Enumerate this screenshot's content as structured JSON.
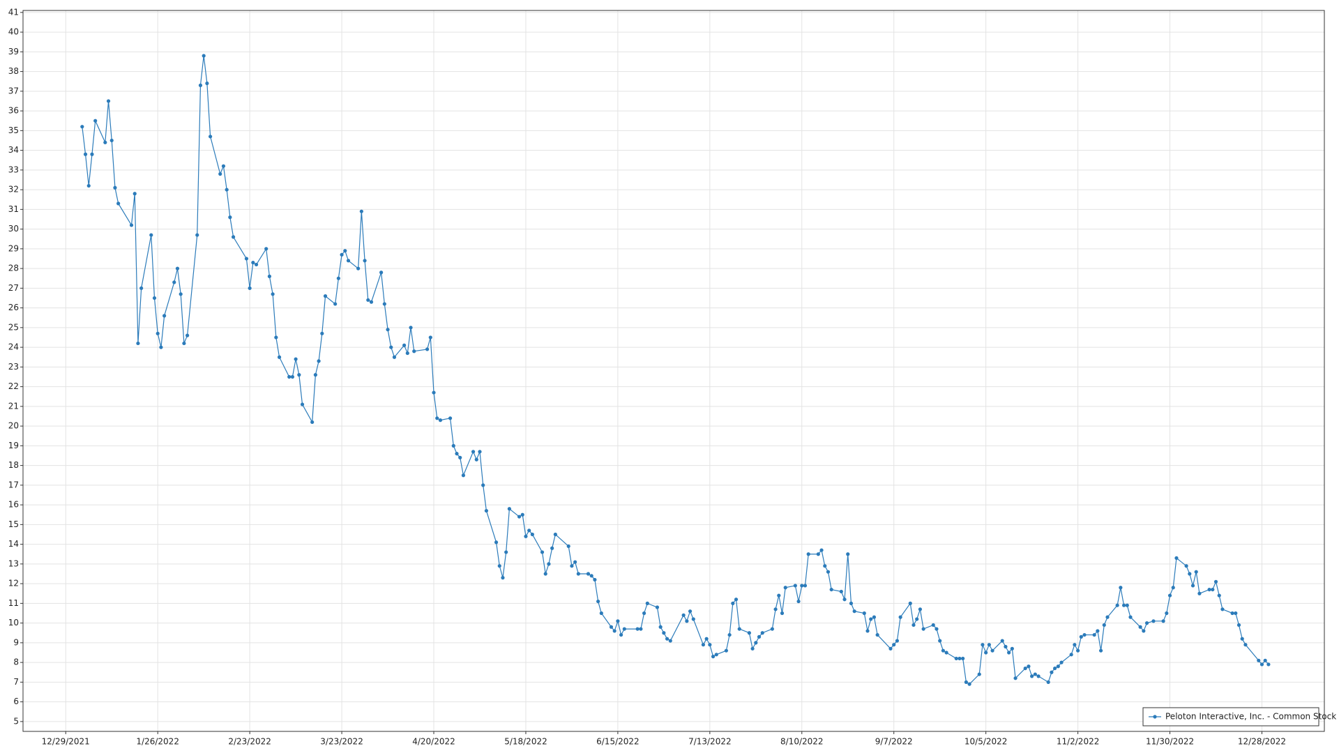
{
  "chart_data": {
    "type": "line",
    "x": [
      "1/3/2022",
      "1/4/2022",
      "1/5/2022",
      "1/6/2022",
      "1/7/2022",
      "1/10/2022",
      "1/11/2022",
      "1/12/2022",
      "1/13/2022",
      "1/14/2022",
      "1/18/2022",
      "1/19/2022",
      "1/20/2022",
      "1/21/2022",
      "1/24/2022",
      "1/25/2022",
      "1/26/2022",
      "1/27/2022",
      "1/28/2022",
      "1/31/2022",
      "2/1/2022",
      "2/2/2022",
      "2/3/2022",
      "2/4/2022",
      "2/7/2022",
      "2/8/2022",
      "2/9/2022",
      "2/10/2022",
      "2/11/2022",
      "2/14/2022",
      "2/15/2022",
      "2/16/2022",
      "2/17/2022",
      "2/18/2022",
      "2/22/2022",
      "2/23/2022",
      "2/24/2022",
      "2/25/2022",
      "2/28/2022",
      "3/1/2022",
      "3/2/2022",
      "3/3/2022",
      "3/4/2022",
      "3/7/2022",
      "3/8/2022",
      "3/9/2022",
      "3/10/2022",
      "3/11/2022",
      "3/14/2022",
      "3/15/2022",
      "3/16/2022",
      "3/17/2022",
      "3/18/2022",
      "3/21/2022",
      "3/22/2022",
      "3/23/2022",
      "3/24/2022",
      "3/25/2022",
      "3/28/2022",
      "3/29/2022",
      "3/30/2022",
      "3/31/2022",
      "4/1/2022",
      "4/4/2022",
      "4/5/2022",
      "4/6/2022",
      "4/7/2022",
      "4/8/2022",
      "4/11/2022",
      "4/12/2022",
      "4/13/2022",
      "4/14/2022",
      "4/18/2022",
      "4/19/2022",
      "4/20/2022",
      "4/21/2022",
      "4/22/2022",
      "4/25/2022",
      "4/26/2022",
      "4/27/2022",
      "4/28/2022",
      "4/29/2022",
      "5/2/2022",
      "5/3/2022",
      "5/4/2022",
      "5/5/2022",
      "5/6/2022",
      "5/9/2022",
      "5/10/2022",
      "5/11/2022",
      "5/12/2022",
      "5/13/2022",
      "5/16/2022",
      "5/17/2022",
      "5/18/2022",
      "5/19/2022",
      "5/20/2022",
      "5/23/2022",
      "5/24/2022",
      "5/25/2022",
      "5/26/2022",
      "5/27/2022",
      "5/31/2022",
      "6/1/2022",
      "6/2/2022",
      "6/3/2022",
      "6/6/2022",
      "6/7/2022",
      "6/8/2022",
      "6/9/2022",
      "6/10/2022",
      "6/13/2022",
      "6/14/2022",
      "6/15/2022",
      "6/16/2022",
      "6/17/2022",
      "6/21/2022",
      "6/22/2022",
      "6/23/2022",
      "6/24/2022",
      "6/27/2022",
      "6/28/2022",
      "6/29/2022",
      "6/30/2022",
      "7/1/2022",
      "7/5/2022",
      "7/6/2022",
      "7/7/2022",
      "7/8/2022",
      "7/11/2022",
      "7/12/2022",
      "7/13/2022",
      "7/14/2022",
      "7/15/2022",
      "7/18/2022",
      "7/19/2022",
      "7/20/2022",
      "7/21/2022",
      "7/22/2022",
      "7/25/2022",
      "7/26/2022",
      "7/27/2022",
      "7/28/2022",
      "7/29/2022",
      "8/1/2022",
      "8/2/2022",
      "8/3/2022",
      "8/4/2022",
      "8/5/2022",
      "8/8/2022",
      "8/9/2022",
      "8/10/2022",
      "8/11/2022",
      "8/12/2022",
      "8/15/2022",
      "8/16/2022",
      "8/17/2022",
      "8/18/2022",
      "8/19/2022",
      "8/22/2022",
      "8/23/2022",
      "8/24/2022",
      "8/25/2022",
      "8/26/2022",
      "8/29/2022",
      "8/30/2022",
      "8/31/2022",
      "9/1/2022",
      "9/2/2022",
      "9/6/2022",
      "9/7/2022",
      "9/8/2022",
      "9/9/2022",
      "9/12/2022",
      "9/13/2022",
      "9/14/2022",
      "9/15/2022",
      "9/16/2022",
      "9/19/2022",
      "9/20/2022",
      "9/21/2022",
      "9/22/2022",
      "9/23/2022",
      "9/26/2022",
      "9/27/2022",
      "9/28/2022",
      "9/29/2022",
      "9/30/2022",
      "10/3/2022",
      "10/4/2022",
      "10/5/2022",
      "10/6/2022",
      "10/7/2022",
      "10/10/2022",
      "10/11/2022",
      "10/12/2022",
      "10/13/2022",
      "10/14/2022",
      "10/17/2022",
      "10/18/2022",
      "10/19/2022",
      "10/20/2022",
      "10/21/2022",
      "10/24/2022",
      "10/25/2022",
      "10/26/2022",
      "10/27/2022",
      "10/28/2022",
      "10/31/2022",
      "11/1/2022",
      "11/2/2022",
      "11/3/2022",
      "11/4/2022",
      "11/7/2022",
      "11/8/2022",
      "11/9/2022",
      "11/10/2022",
      "11/11/2022",
      "11/14/2022",
      "11/15/2022",
      "11/16/2022",
      "11/17/2022",
      "11/18/2022",
      "11/21/2022",
      "11/22/2022",
      "11/23/2022",
      "11/25/2022",
      "11/28/2022",
      "11/29/2022",
      "11/30/2022",
      "12/1/2022",
      "12/2/2022",
      "12/5/2022",
      "12/6/2022",
      "12/7/2022",
      "12/8/2022",
      "12/9/2022",
      "12/12/2022",
      "12/13/2022",
      "12/14/2022",
      "12/15/2022",
      "12/16/2022",
      "12/19/2022",
      "12/20/2022",
      "12/21/2022",
      "12/22/2022",
      "12/23/2022",
      "12/27/2022",
      "12/28/2022",
      "12/29/2022",
      "12/30/2022"
    ],
    "series": [
      {
        "name": "Peloton Interactive, Inc. - Common Stock",
        "color": "#2b7bba",
        "values": [
          35.2,
          33.8,
          32.2,
          33.8,
          35.5,
          34.4,
          36.5,
          34.5,
          32.1,
          31.3,
          30.2,
          31.8,
          24.2,
          27.0,
          29.7,
          26.5,
          24.7,
          24.0,
          25.6,
          27.3,
          28.0,
          26.7,
          24.2,
          24.6,
          29.7,
          37.3,
          38.8,
          37.4,
          34.7,
          32.8,
          33.2,
          32.0,
          30.6,
          29.6,
          28.5,
          27.0,
          28.3,
          28.2,
          29.0,
          27.6,
          26.7,
          24.5,
          23.5,
          22.5,
          22.5,
          23.4,
          22.6,
          21.1,
          20.2,
          22.6,
          23.3,
          24.7,
          26.6,
          26.2,
          27.5,
          28.7,
          28.9,
          28.4,
          28.0,
          30.9,
          28.4,
          26.4,
          26.3,
          27.8,
          26.2,
          24.9,
          24.0,
          23.5,
          24.1,
          23.7,
          25.0,
          23.8,
          23.9,
          24.5,
          21.7,
          20.4,
          20.3,
          20.4,
          19.0,
          18.6,
          18.4,
          17.5,
          18.7,
          18.3,
          18.7,
          17.0,
          15.7,
          14.1,
          12.9,
          12.3,
          13.6,
          15.8,
          15.4,
          15.5,
          14.4,
          14.7,
          14.5,
          13.6,
          12.5,
          13.0,
          13.8,
          14.5,
          13.9,
          12.9,
          13.1,
          12.5,
          12.5,
          12.4,
          12.2,
          11.1,
          10.5,
          9.8,
          9.6,
          10.1,
          9.4,
          9.7,
          9.7,
          9.7,
          10.5,
          11.0,
          10.8,
          9.8,
          9.5,
          9.2,
          9.1,
          10.4,
          10.1,
          10.6,
          10.2,
          8.9,
          9.2,
          8.9,
          8.3,
          8.4,
          8.6,
          9.4,
          11.0,
          11.2,
          9.7,
          9.5,
          8.7,
          9.0,
          9.3,
          9.5,
          9.7,
          10.7,
          11.4,
          10.5,
          11.8,
          11.9,
          11.1,
          11.9,
          11.9,
          13.5,
          13.5,
          13.7,
          12.9,
          12.6,
          11.7,
          11.6,
          11.2,
          13.5,
          11.0,
          10.6,
          10.5,
          9.6,
          10.2,
          10.3,
          9.4,
          8.7,
          8.9,
          9.1,
          10.3,
          11.0,
          9.9,
          10.2,
          10.7,
          9.7,
          9.9,
          9.7,
          9.1,
          8.6,
          8.5,
          8.2,
          8.2,
          8.2,
          7.0,
          6.9,
          7.4,
          8.9,
          8.5,
          8.9,
          8.6,
          9.1,
          8.8,
          8.5,
          8.7,
          7.2,
          7.7,
          7.8,
          7.3,
          7.4,
          7.3,
          7.0,
          7.5,
          7.7,
          7.8,
          8.0,
          8.4,
          8.9,
          8.6,
          9.3,
          9.4,
          9.4,
          9.6,
          8.6,
          9.9,
          10.3,
          10.9,
          11.8,
          10.9,
          10.9,
          10.3,
          9.8,
          9.6,
          10.0,
          10.1,
          10.1,
          10.5,
          11.4,
          11.8,
          13.3,
          12.9,
          12.5,
          11.9,
          12.6,
          11.5,
          11.7,
          11.7,
          12.1,
          11.4,
          10.7,
          10.5,
          10.5,
          9.9,
          9.2,
          8.9,
          8.1,
          7.9,
          8.1,
          7.9
        ]
      }
    ],
    "xlim": [
      "12/16/2021",
      "1/16/2023"
    ],
    "xticks": [
      "12/29/2021",
      "1/26/2022",
      "2/23/2022",
      "3/23/2022",
      "4/20/2022",
      "5/18/2022",
      "6/15/2022",
      "7/13/2022",
      "8/10/2022",
      "9/7/2022",
      "10/5/2022",
      "11/2/2022",
      "11/30/2022",
      "12/28/2022"
    ],
    "ylim": [
      4.5,
      41.1
    ],
    "yticks": [
      5,
      6,
      7,
      8,
      9,
      10,
      11,
      12,
      13,
      14,
      15,
      16,
      17,
      18,
      19,
      20,
      21,
      22,
      23,
      24,
      25,
      26,
      27,
      28,
      29,
      30,
      31,
      32,
      33,
      34,
      35,
      36,
      37,
      38,
      39,
      40,
      41
    ],
    "grid": true,
    "legend": "lower right"
  }
}
